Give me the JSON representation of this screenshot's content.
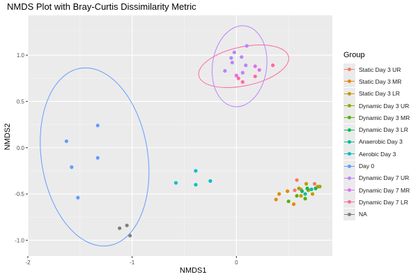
{
  "chart_data": {
    "type": "scatter",
    "title": "NMDS Plot with Bray-Curtis Dissimilarity Metric",
    "xlabel": "NMDS1",
    "ylabel": "NMDS2",
    "xlim": [
      -2.0,
      0.92
    ],
    "ylim": [
      -1.17,
      1.43
    ],
    "x_ticks": [
      -2,
      -1,
      0
    ],
    "x_tick_labels": [
      "-2",
      "-1",
      "0"
    ],
    "y_ticks": [
      -1.0,
      -0.5,
      0.0,
      0.5,
      1.0
    ],
    "y_tick_labels": [
      "-1.0",
      "-0.5",
      "0.0",
      "0.5",
      "1.0"
    ],
    "grid": true,
    "legend_title": "Group",
    "legend_position": "right",
    "series": [
      {
        "name": "Static Day 3 UR",
        "color": "#F8766D",
        "points": [
          [
            0.58,
            -0.35
          ],
          [
            0.56,
            -0.46
          ],
          [
            0.62,
            -0.45
          ],
          [
            0.75,
            -0.39
          ]
        ]
      },
      {
        "name": "Static Day 3 MR",
        "color": "#E38900",
        "points": [
          [
            0.41,
            -0.5
          ],
          [
            0.38,
            -0.56
          ],
          [
            0.49,
            -0.47
          ],
          [
            0.55,
            -0.61
          ]
        ]
      },
      {
        "name": "Static Day 3 LR",
        "color": "#C49A00",
        "points": [
          [
            0.67,
            -0.39
          ],
          [
            0.73,
            -0.5
          ],
          [
            0.78,
            -0.42
          ],
          [
            0.62,
            -0.52
          ]
        ]
      },
      {
        "name": "Dynamic Day 3 UR",
        "color": "#99A800",
        "points": [
          [
            0.6,
            -0.44
          ],
          [
            0.69,
            -0.46
          ],
          [
            0.8,
            -0.42
          ]
        ]
      },
      {
        "name": "Dynamic Day 3 MR",
        "color": "#53B400",
        "points": [
          [
            0.5,
            -0.58
          ],
          [
            0.58,
            -0.52
          ],
          [
            0.66,
            -0.55
          ]
        ]
      },
      {
        "name": "Dynamic Day 3 LR",
        "color": "#00BC56",
        "points": [
          [
            0.68,
            -0.44
          ],
          [
            0.76,
            -0.44
          ],
          [
            0.63,
            -0.47
          ]
        ]
      },
      {
        "name": "Anaerobic Day 3",
        "color": "#00C094",
        "points": [
          [
            0.66,
            -0.5
          ],
          [
            0.72,
            -0.45
          ]
        ]
      },
      {
        "name": "Aerobic Day 3",
        "color": "#00BFC4",
        "points": [
          [
            -0.58,
            -0.38
          ],
          [
            -0.39,
            -0.25
          ],
          [
            -0.39,
            -0.4
          ],
          [
            -0.25,
            -0.36
          ]
        ]
      },
      {
        "name": "Day 0",
        "color": "#619CFF",
        "points": [
          [
            -1.33,
            0.24
          ],
          [
            -1.63,
            0.07
          ],
          [
            -1.33,
            -0.11
          ],
          [
            -1.58,
            -0.21
          ],
          [
            -1.52,
            -0.54
          ]
        ],
        "ellipse": {
          "cx": -1.36,
          "cy": -0.1,
          "rx": 0.51,
          "ry": 0.97,
          "angle": -9
        }
      },
      {
        "name": "Dynamic Day 7 UR",
        "color": "#B983FF",
        "points": [
          [
            -0.02,
            1.03
          ],
          [
            0.1,
            1.1
          ],
          [
            -0.05,
            0.97
          ],
          [
            0.05,
            0.98
          ],
          [
            -0.04,
            0.92
          ],
          [
            0.09,
            0.89
          ],
          [
            -0.11,
            0.83
          ],
          [
            0.06,
            0.81
          ]
        ],
        "ellipse": {
          "cx": 0.03,
          "cy": 0.88,
          "rx": 0.26,
          "ry": 0.44,
          "angle": 8
        }
      },
      {
        "name": "Dynamic Day 7 MR",
        "color": "#E76BF3",
        "points": [
          [
            0.0,
            0.78
          ],
          [
            0.18,
            0.88
          ],
          [
            0.22,
            0.84
          ]
        ]
      },
      {
        "name": "Dynamic Day 7 LR",
        "color": "#FF67A4",
        "points": [
          [
            0.02,
            0.75
          ],
          [
            0.06,
            0.71
          ],
          [
            0.18,
            0.77
          ],
          [
            0.35,
            0.89
          ]
        ],
        "ellipse": {
          "cx": 0.07,
          "cy": 0.88,
          "rx": 0.44,
          "ry": 0.21,
          "angle": -12
        }
      },
      {
        "name": "NA",
        "color": "#7F7F7F",
        "points": [
          [
            -1.12,
            -0.87
          ],
          [
            -1.05,
            -0.84
          ],
          [
            -1.02,
            -0.95
          ]
        ]
      }
    ]
  }
}
